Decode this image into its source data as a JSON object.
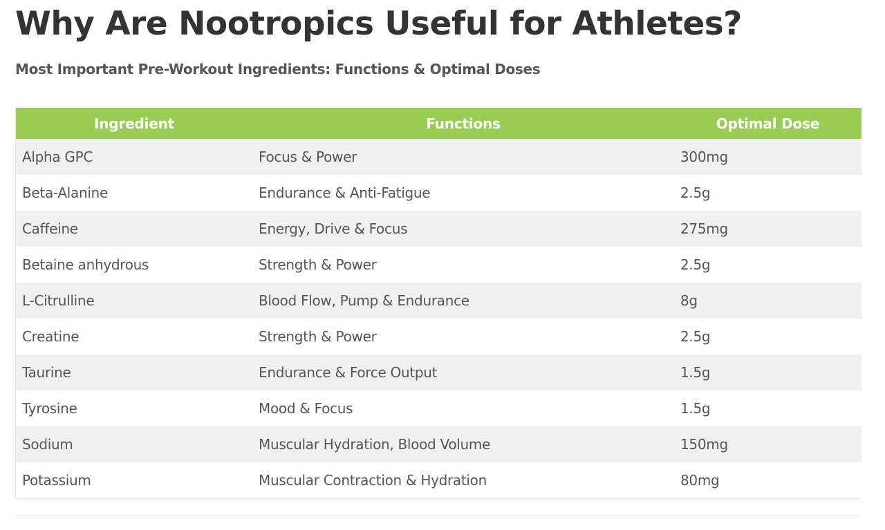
{
  "page": {
    "title": "Why Are Nootropics Useful for Athletes?",
    "subtitle": "Most Important Pre-Workout Ingredients: Functions & Optimal Doses"
  },
  "table": {
    "header_color": "#9acc55",
    "headers": [
      "Ingredient",
      "Functions",
      "Optimal Dose"
    ],
    "rows": [
      {
        "ingredient": "Alpha GPC",
        "functions": "Focus & Power",
        "dose": "300mg"
      },
      {
        "ingredient": "Beta-Alanine",
        "functions": "Endurance & Anti-Fatigue",
        "dose": "2.5g"
      },
      {
        "ingredient": "Caffeine",
        "functions": "Energy, Drive & Focus",
        "dose": "275mg"
      },
      {
        "ingredient": "Betaine anhydrous",
        "functions": "Strength & Power",
        "dose": "2.5g"
      },
      {
        "ingredient": "L-Citrulline",
        "functions": "Blood Flow, Pump & Endurance",
        "dose": "8g"
      },
      {
        "ingredient": "Creatine",
        "functions": "Strength & Power",
        "dose": "2.5g"
      },
      {
        "ingredient": "Taurine",
        "functions": "Endurance & Force Output",
        "dose": "1.5g"
      },
      {
        "ingredient": "Tyrosine",
        "functions": "Mood & Focus",
        "dose": "1.5g"
      },
      {
        "ingredient": "Sodium",
        "functions": "Muscular Hydration, Blood Volume",
        "dose": "150mg"
      },
      {
        "ingredient": "Potassium",
        "functions": "Muscular Contraction & Hydration",
        "dose": "80mg"
      }
    ]
  }
}
